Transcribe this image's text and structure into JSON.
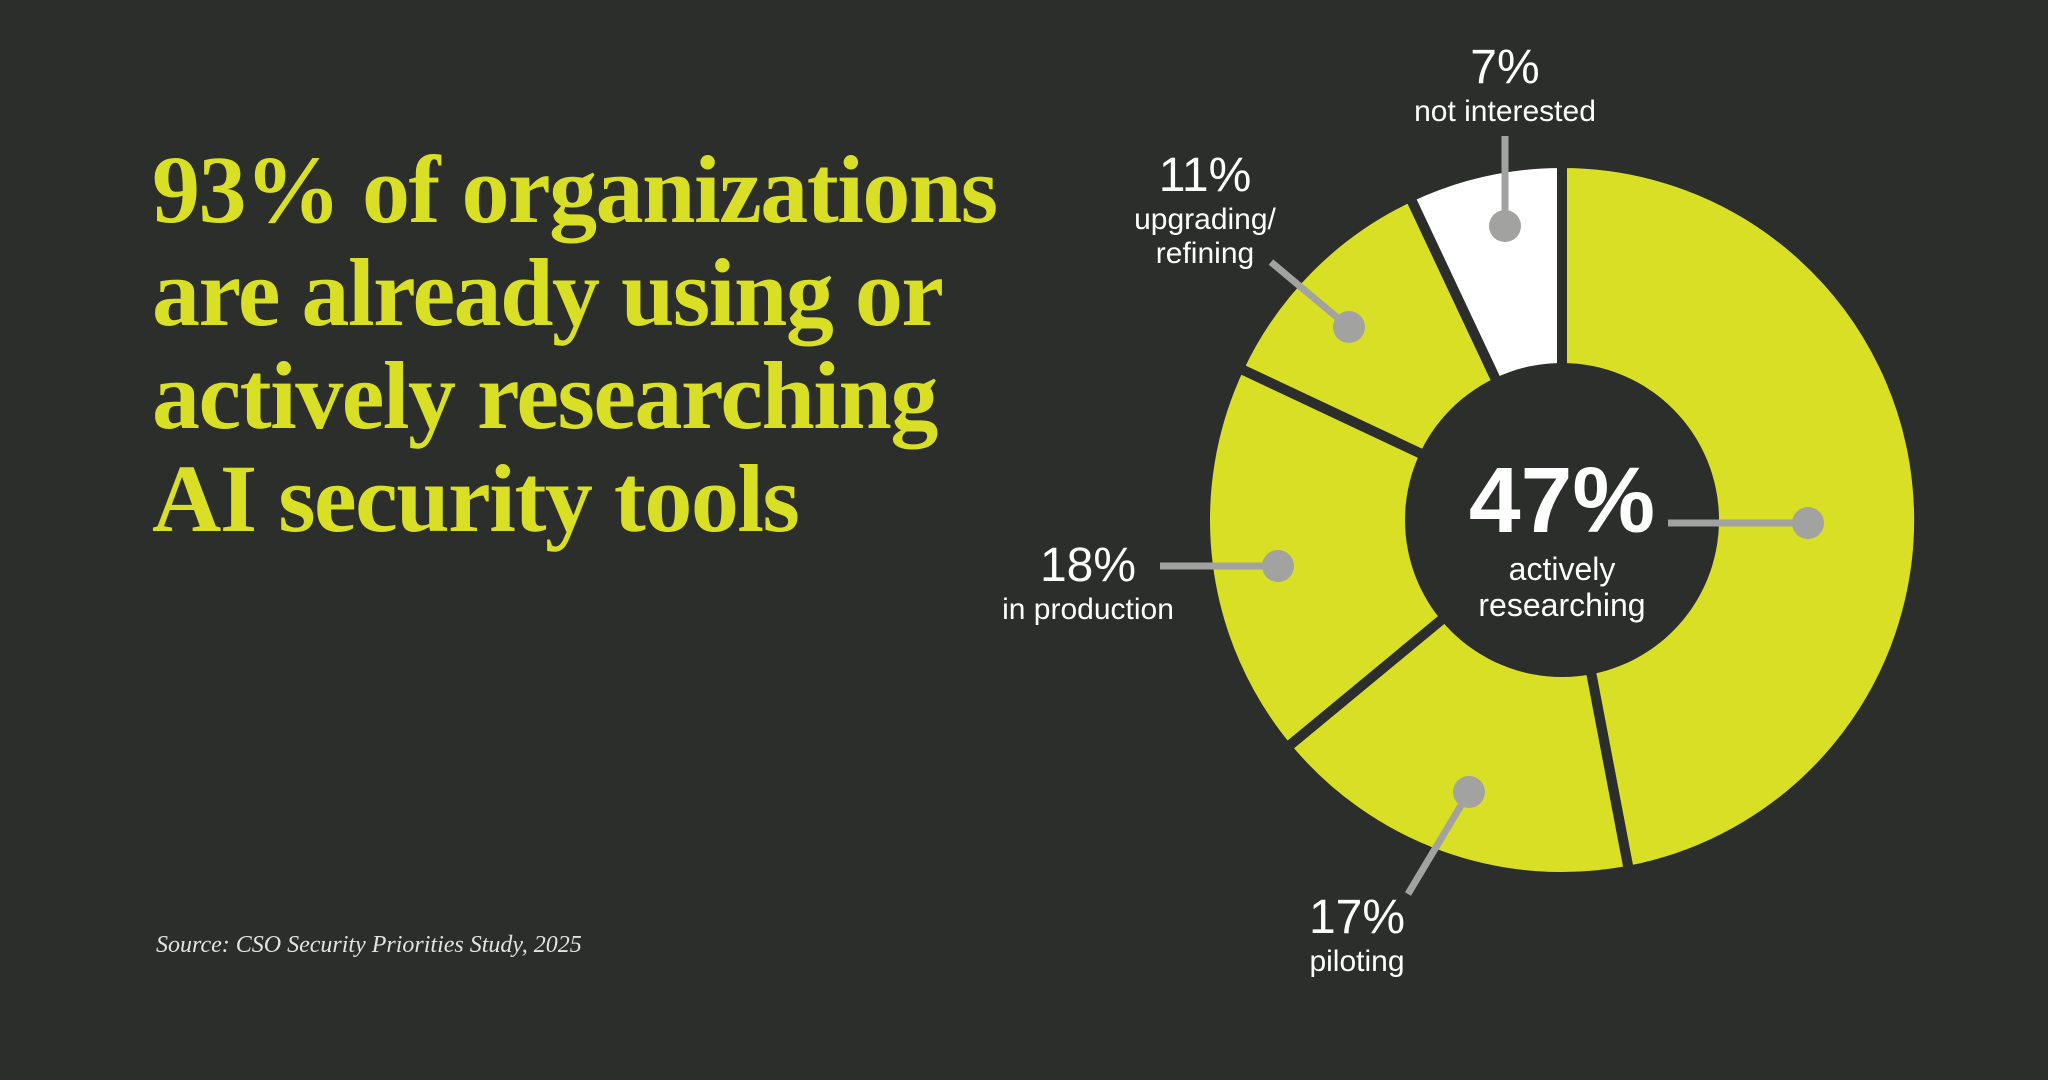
{
  "page": {
    "background_color": "#2b2e2b"
  },
  "headline": {
    "color": "#d8df24",
    "lines": [
      "93% of organizations",
      "are already using or",
      "actively researching",
      "AI security tools"
    ]
  },
  "source": {
    "text": "Source: CSO Security Priorities Study, 2025"
  },
  "chart_data": {
    "type": "pie",
    "variant": "donut",
    "title": "",
    "start_angle_deg": 0,
    "direction": "clockwise",
    "gap_color": "#2b2e2b",
    "leader_color": "#a2a2a0",
    "center": {
      "value": "47%",
      "label_display": "actively\nresearching"
    },
    "segments": [
      {
        "label": "actively researching",
        "value_pct": 47,
        "pct_text": "47%",
        "label_display": "actively researching",
        "color": "#d8df24",
        "labeled_in_center": true
      },
      {
        "label": "piloting",
        "value_pct": 17,
        "pct_text": "17%",
        "label_display": "piloting",
        "color": "#d8df24",
        "labeled_in_center": false
      },
      {
        "label": "in production",
        "value_pct": 18,
        "pct_text": "18%",
        "label_display": "in production",
        "color": "#d8df24",
        "labeled_in_center": false
      },
      {
        "label": "upgrading/refining",
        "value_pct": 11,
        "pct_text": "11%",
        "label_display": "upgrading/\nrefining",
        "color": "#d8df24",
        "labeled_in_center": false
      },
      {
        "label": "not interested",
        "value_pct": 7,
        "pct_text": "7%",
        "label_display": "not interested",
        "color": "#ffffff",
        "labeled_in_center": false
      }
    ]
  }
}
